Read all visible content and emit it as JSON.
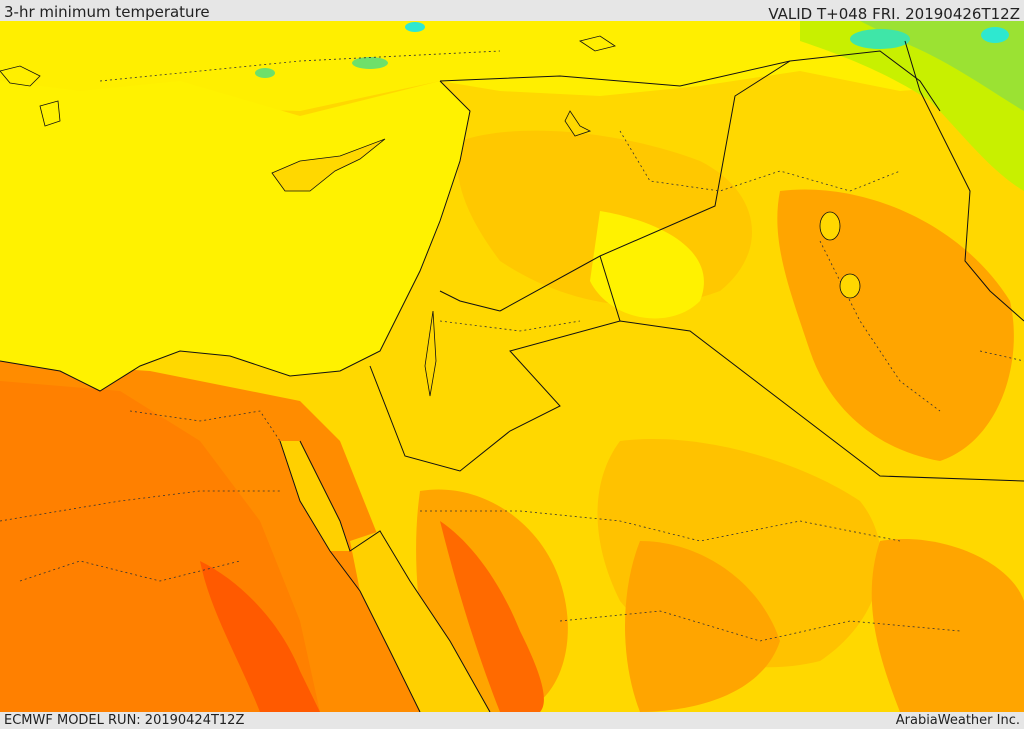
{
  "header": {
    "title": "3-hr minimum temperature",
    "valid": "VALID T+048 FRI. 20190426T12Z"
  },
  "footer": {
    "model_run": "ECMWF MODEL RUN: 20190424T12Z",
    "credit": "ArabiaWeather Inc."
  },
  "colors": {
    "sea_yellow": "#fff200",
    "warm_yellow": "#ffd800",
    "gold": "#ffc200",
    "light_orange": "#ffa500",
    "orange": "#ff8c00",
    "deep_orange": "#ff6a00",
    "green": "#9be233",
    "cyan": "#2ee8d0",
    "border": "#111111"
  }
}
